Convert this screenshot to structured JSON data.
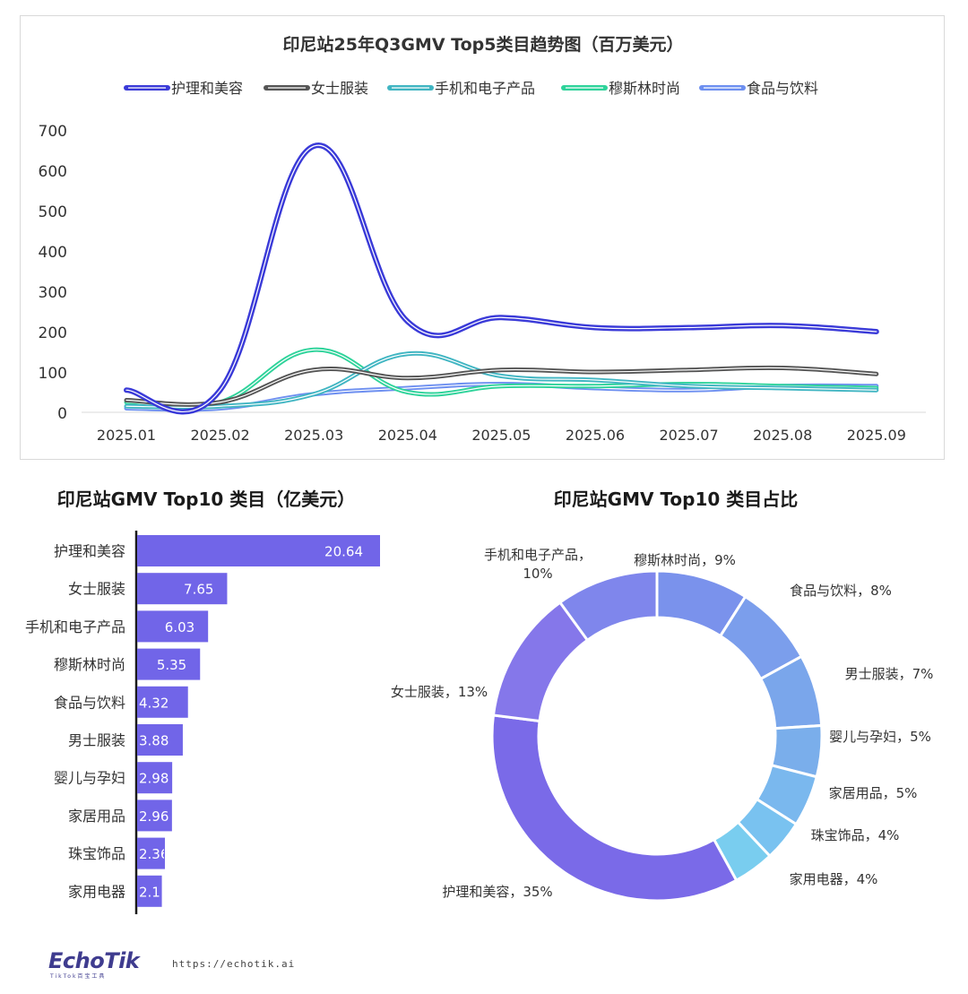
{
  "colors": {
    "line_series": [
      "#3a3ad8",
      "#555555",
      "#40b5c2",
      "#2ed39a",
      "#6d8ff0"
    ],
    "bar": "#7165e8",
    "donut": [
      "#7a6ae8",
      "#8577ea",
      "#7f86ec",
      "#7a92ec",
      "#7b9eec",
      "#7aa6eb",
      "#7aaeeb",
      "#7ab8ee",
      "#79c2f0",
      "#79cdef"
    ]
  },
  "chart_data": [
    {
      "type": "line",
      "title": "印尼站25年Q3GMV Top5类目趋势图（百万美元）",
      "categories": [
        "2025.01",
        "2025.02",
        "2025.03",
        "2025.04",
        "2025.05",
        "2025.06",
        "2025.07",
        "2025.08",
        "2025.09"
      ],
      "ylim": [
        0,
        700
      ],
      "yticks": [
        "0",
        "100",
        "200",
        "300",
        "400",
        "500",
        "600",
        "700"
      ],
      "grid": false,
      "legend_position": "top",
      "series": [
        {
          "name": "护理和美容",
          "values": [
            55,
            55,
            660,
            225,
            235,
            210,
            210,
            215,
            200
          ]
        },
        {
          "name": "女士服装",
          "values": [
            30,
            25,
            105,
            85,
            105,
            100,
            105,
            110,
            95
          ]
        },
        {
          "name": "手机和电子产品",
          "values": [
            15,
            15,
            45,
            145,
            90,
            80,
            65,
            60,
            55
          ]
        },
        {
          "name": "穆斯林时尚",
          "values": [
            25,
            25,
            155,
            50,
            65,
            65,
            70,
            65,
            60
          ]
        },
        {
          "name": "食品与饮料",
          "values": [
            10,
            10,
            45,
            60,
            70,
            60,
            55,
            65,
            65
          ]
        }
      ]
    },
    {
      "type": "bar",
      "title": "印尼站GMV Top10 类目（亿美元）",
      "orientation": "horizontal",
      "categories": [
        "护理和美容",
        "女士服装",
        "手机和电子产品",
        "穆斯林时尚",
        "食品与饮料",
        "男士服装",
        "婴儿与孕妇",
        "家居用品",
        "珠宝饰品",
        "家用电器"
      ],
      "values": [
        20.64,
        7.65,
        6.03,
        5.35,
        4.32,
        3.88,
        2.98,
        2.96,
        2.36,
        2.1
      ],
      "data_labels": [
        "20.64",
        "7.65",
        "6.03",
        "5.35",
        "4.32",
        "3.88",
        "2.98",
        "2.96",
        "2.36",
        "2.1"
      ],
      "xlim": [
        0,
        21.5
      ]
    },
    {
      "type": "pie",
      "subtype": "donut",
      "title": "印尼站GMV Top10 类目占比",
      "categories": [
        "护理和美容",
        "女士服装",
        "手机和电子产品",
        "穆斯林时尚",
        "食品与饮料",
        "男士服装",
        "婴儿与孕妇",
        "家居用品",
        "珠宝饰品",
        "家用电器"
      ],
      "values": [
        35,
        13,
        10,
        9,
        8,
        7,
        5,
        5,
        4,
        4
      ],
      "labels": [
        "护理和美容，35%",
        "女士服装，13%",
        "手机和电子产品，10%",
        "穆斯林时尚，9%",
        "食品与饮料，8%",
        "男士服装，7%",
        "婴儿与孕妇，5%",
        "家居用品，5%",
        "珠宝饰品，4%",
        "家用电器，4%"
      ]
    }
  ],
  "footer": {
    "logo": "EchoTik",
    "logo_sub": "TikTok百宝工具",
    "url": "https://echotik.ai"
  }
}
